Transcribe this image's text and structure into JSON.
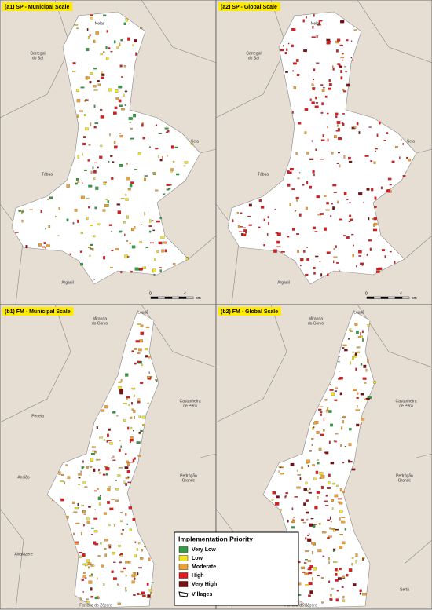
{
  "panels": [
    {
      "title": "(a1) SP - Municipal Scale",
      "places": [
        {
          "lines": [
            "Nelas"
          ]
        },
        {
          "lines": [
            "Carregal",
            "do Sal"
          ]
        },
        {
          "lines": [
            "Seia"
          ]
        },
        {
          "lines": [
            "Tábua"
          ]
        },
        {
          "lines": [
            "Arganil"
          ]
        }
      ],
      "scale": [
        "0",
        "4",
        "km"
      ]
    },
    {
      "title": "(a2) SP - Global Scale",
      "places": [
        {
          "lines": [
            "Nelas"
          ]
        },
        {
          "lines": [
            "Carregal",
            "do Sal"
          ]
        },
        {
          "lines": [
            "Seia"
          ]
        },
        {
          "lines": [
            "Tábua"
          ]
        },
        {
          "lines": [
            "Arganil"
          ]
        }
      ],
      "scale": [
        "0",
        "4",
        "km"
      ]
    },
    {
      "title": "(b1) FM - Municipal Scale",
      "places": [
        {
          "lines": [
            "Miranda",
            "do Corvo"
          ]
        },
        {
          "lines": [
            "Lousã"
          ]
        },
        {
          "lines": [
            "Castanheira",
            "de Pêra"
          ]
        },
        {
          "lines": [
            "Penela"
          ]
        },
        {
          "lines": [
            "Pedrógão",
            "Grande"
          ]
        },
        {
          "lines": [
            "Ansião"
          ]
        },
        {
          "lines": [
            "Alvaiázere"
          ]
        },
        {
          "lines": [
            "Ferreira do Zêzere"
          ]
        }
      ]
    },
    {
      "title": "(b2) FM - Global Scale",
      "places": [
        {
          "lines": [
            "Miranda",
            "do Corvo"
          ]
        },
        {
          "lines": [
            "Lousã"
          ]
        },
        {
          "lines": [
            "Castanheira",
            "de Pêra"
          ]
        },
        {
          "lines": [
            "Pedrógão",
            "Grande"
          ]
        },
        {
          "lines": [
            "Sertã"
          ]
        },
        {
          "lines": [
            "Ferreira do Zêzere"
          ]
        }
      ]
    }
  ],
  "legend": {
    "title": "Implementation Priority",
    "items": [
      {
        "label": "Very Low",
        "color": "#2e9e3e"
      },
      {
        "label": "Low",
        "color": "#f2e424"
      },
      {
        "label": "Moderate",
        "color": "#f0a030"
      },
      {
        "label": "High",
        "color": "#e31a1c"
      },
      {
        "label": "Very High",
        "color": "#7a0f12"
      }
    ],
    "villages": "Villages"
  }
}
